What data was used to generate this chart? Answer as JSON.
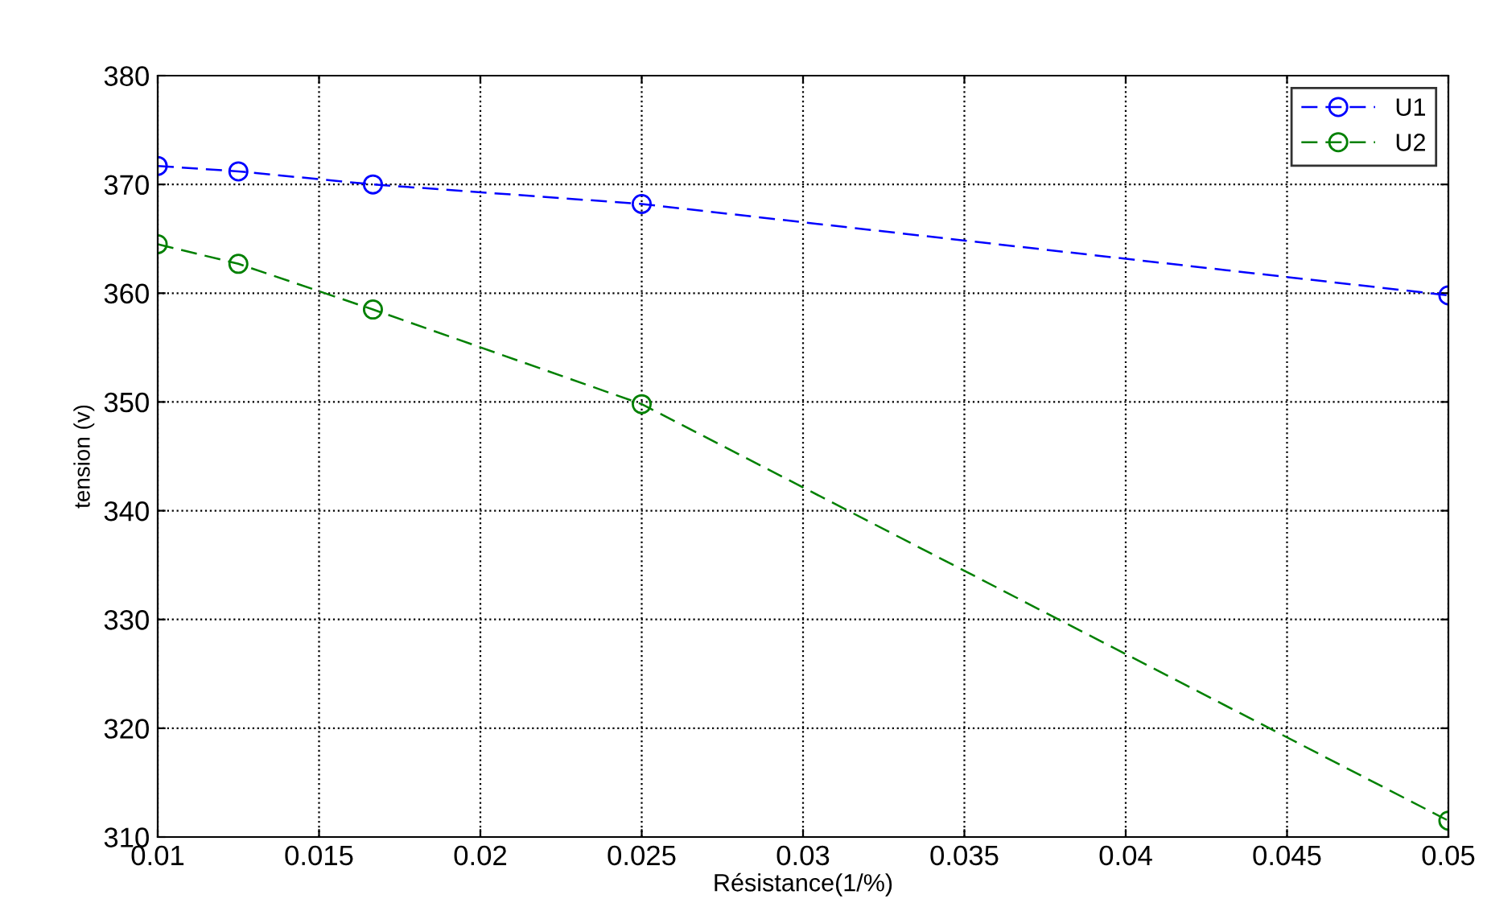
{
  "chart_data": {
    "type": "line",
    "xlabel": "Résistance(1/%)",
    "ylabel": "tension (v)",
    "x": [
      0.01,
      0.0125,
      0.01667,
      0.025,
      0.05
    ],
    "series": [
      {
        "name": "U1",
        "color": "#0000ff",
        "values": [
          371.7,
          371.2,
          370.0,
          368.2,
          359.8
        ]
      },
      {
        "name": "U2",
        "color": "#008000",
        "values": [
          364.5,
          362.7,
          358.5,
          349.8,
          311.5
        ]
      }
    ],
    "xlim": [
      0.01,
      0.05
    ],
    "xticks": [
      0.01,
      0.015,
      0.02,
      0.025,
      0.03,
      0.035,
      0.04,
      0.045,
      0.05
    ],
    "ylim": [
      310,
      380
    ],
    "yticks": [
      310,
      320,
      330,
      340,
      350,
      360,
      370,
      380
    ],
    "grid": true,
    "legend": "top right",
    "marker": "circle",
    "line_style": "dashed"
  }
}
